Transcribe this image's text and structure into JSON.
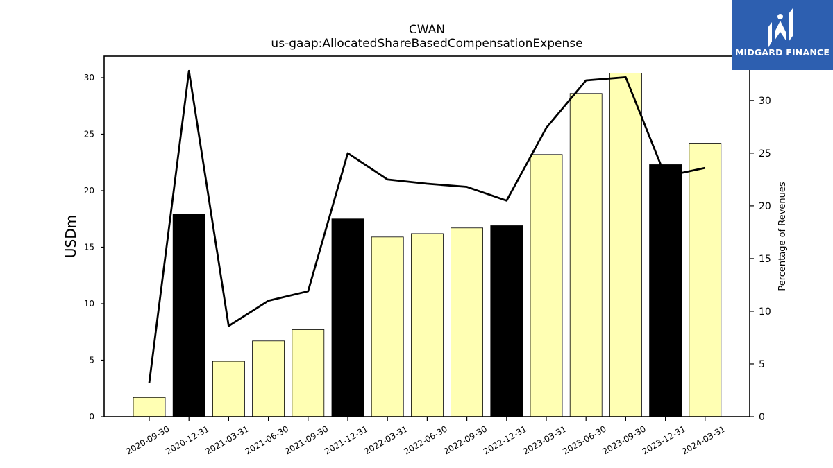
{
  "brand": {
    "name": "MIDGARD FINANCE",
    "color": "#2d5fb0",
    "icon": "midgard-logo-icon"
  },
  "chart_data": {
    "type": "bar",
    "title": "CWAN",
    "subtitle": "us-gaap:AllocatedShareBasedCompensationExpense",
    "ylabel": "USDm",
    "y2label": "Percentage of Revenues",
    "categories": [
      "2020-09-30",
      "2020-12-31",
      "2021-03-31",
      "2021-06-30",
      "2021-09-30",
      "2021-12-31",
      "2022-03-31",
      "2022-06-30",
      "2022-09-30",
      "2022-12-31",
      "2023-03-31",
      "2023-06-30",
      "2023-09-30",
      "2023-12-31",
      "2024-03-31"
    ],
    "series": [
      {
        "type": "bar",
        "values": [
          1.7,
          17.9,
          4.9,
          6.7,
          7.7,
          17.5,
          15.9,
          16.2,
          16.7,
          16.9,
          23.2,
          28.6,
          30.4,
          22.3,
          24.2
        ],
        "colors": [
          "#ffffb3",
          "#000000",
          "#ffffb3",
          "#ffffb3",
          "#ffffb3",
          "#000000",
          "#ffffb3",
          "#ffffb3",
          "#ffffb3",
          "#000000",
          "#ffffb3",
          "#ffffb3",
          "#ffffb3",
          "#000000",
          "#ffffb3"
        ]
      },
      {
        "type": "line",
        "axis": "right",
        "color": "#000000",
        "values": [
          3.2,
          32.8,
          8.6,
          11.0,
          11.9,
          25.0,
          22.5,
          22.1,
          21.8,
          20.5,
          27.4,
          31.9,
          32.2,
          22.8,
          23.6
        ]
      }
    ],
    "ylim": [
      0,
      31.9
    ],
    "yticks": [
      0,
      5,
      10,
      15,
      20,
      25,
      30
    ],
    "y2lim": [
      0,
      34.2
    ],
    "y2ticks": [
      0,
      5,
      10,
      15,
      20,
      25,
      30
    ],
    "grid": false
  }
}
